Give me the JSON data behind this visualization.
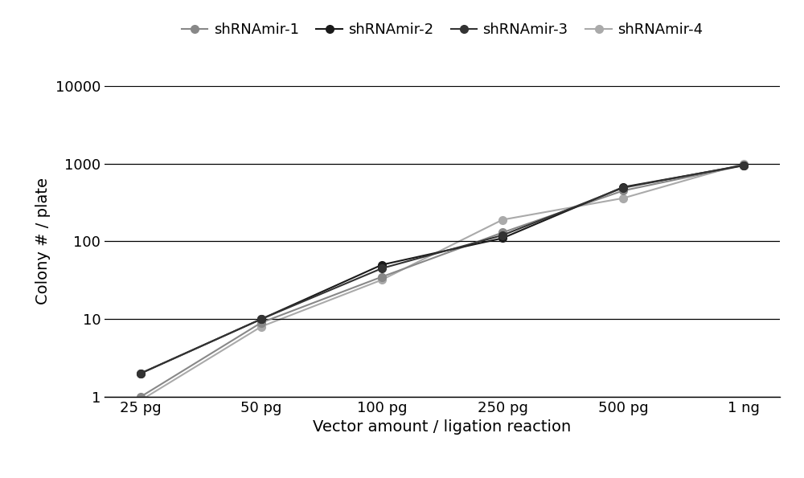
{
  "series": [
    {
      "label": "shRNAmir-1",
      "color": "#888888",
      "marker": "o",
      "markersize": 7,
      "linewidth": 1.5,
      "zorder": 2,
      "values": [
        1.0,
        9.0,
        35.0,
        130.0,
        450.0,
        950.0
      ]
    },
    {
      "label": "shRNAmir-2",
      "color": "#1a1a1a",
      "marker": "o",
      "markersize": 7,
      "linewidth": 1.5,
      "zorder": 3,
      "values": [
        2.0,
        10.0,
        50.0,
        110.0,
        500.0,
        950.0
      ]
    },
    {
      "label": "shRNAmir-3",
      "color": "#333333",
      "marker": "o",
      "markersize": 7,
      "linewidth": 1.5,
      "zorder": 3,
      "values": [
        2.0,
        10.0,
        45.0,
        120.0,
        490.0,
        960.0
      ]
    },
    {
      "label": "shRNAmir-4",
      "color": "#aaaaaa",
      "marker": "o",
      "markersize": 7,
      "linewidth": 1.5,
      "zorder": 1,
      "values": [
        0.9,
        8.0,
        32.0,
        190.0,
        360.0,
        1000.0
      ]
    }
  ],
  "x_positions": [
    0,
    1,
    2,
    3,
    4,
    5
  ],
  "x_labels": [
    "25 pg",
    "50 pg",
    "100 pg",
    "250 pg",
    "500 pg",
    "1 ng"
  ],
  "ylabel": "Colony # / plate",
  "xlabel": "Vector amount / ligation reaction",
  "ylim_log": [
    1,
    10000
  ],
  "yticks": [
    1,
    10,
    100,
    1000,
    10000
  ],
  "background_color": "#ffffff",
  "legend_ncol": 4,
  "axis_fontsize": 14,
  "tick_fontsize": 13,
  "legend_fontsize": 13
}
